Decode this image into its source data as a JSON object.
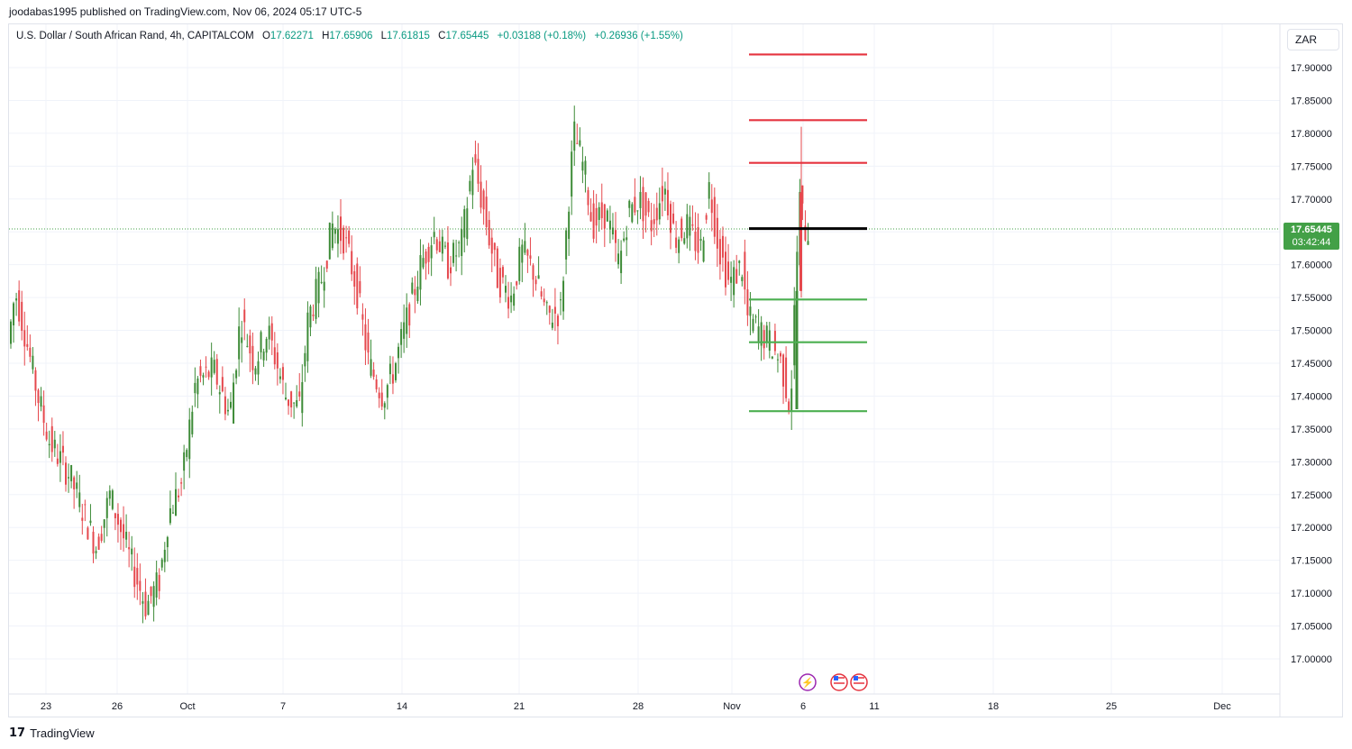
{
  "header": {
    "published": "joodabas1995 published on TradingView.com, Nov 06, 2024 05:17 UTC-5"
  },
  "legend": {
    "symbol": "U.S. Dollar / South African Rand, 4h, CAPITALCOM",
    "open": "17.62271",
    "high": "17.65906",
    "low": "17.61815",
    "close": "17.65445",
    "change": "+0.03188 (+0.18%)",
    "change2": "+0.26936 (+1.55%)"
  },
  "currency_button": "ZAR",
  "last_price": {
    "price": "17.65445",
    "countdown": "03:42:44"
  },
  "footer": {
    "brand": "TradingView",
    "mark": "17"
  },
  "colors": {
    "up": "#3d8b37",
    "down": "#e5484d",
    "resistance": "#e5333f",
    "support": "#4caf50",
    "pivot": "#000000"
  },
  "chart_data": {
    "type": "candlestick",
    "ylim": [
      16.95,
      17.93
    ],
    "y_ticks": [
      "17.00000",
      "17.05000",
      "17.10000",
      "17.15000",
      "17.20000",
      "17.25000",
      "17.30000",
      "17.35000",
      "17.40000",
      "17.45000",
      "17.50000",
      "17.55000",
      "17.60000",
      "17.65000",
      "17.70000",
      "17.75000",
      "17.80000",
      "17.85000",
      "17.90000"
    ],
    "x_ticks": [
      "23",
      "26",
      "Oct",
      "7",
      "14",
      "21",
      "28",
      "Nov",
      "6",
      "11",
      "18",
      "25",
      "Dec"
    ],
    "horizontal_levels": [
      {
        "value": 17.92,
        "kind": "resistance"
      },
      {
        "value": 17.82,
        "kind": "resistance"
      },
      {
        "value": 17.755,
        "kind": "resistance"
      },
      {
        "value": 17.655,
        "kind": "pivot"
      },
      {
        "value": 17.547,
        "kind": "support"
      },
      {
        "value": 17.482,
        "kind": "support"
      },
      {
        "value": 17.377,
        "kind": "support"
      }
    ],
    "current_price": 17.65445
  }
}
